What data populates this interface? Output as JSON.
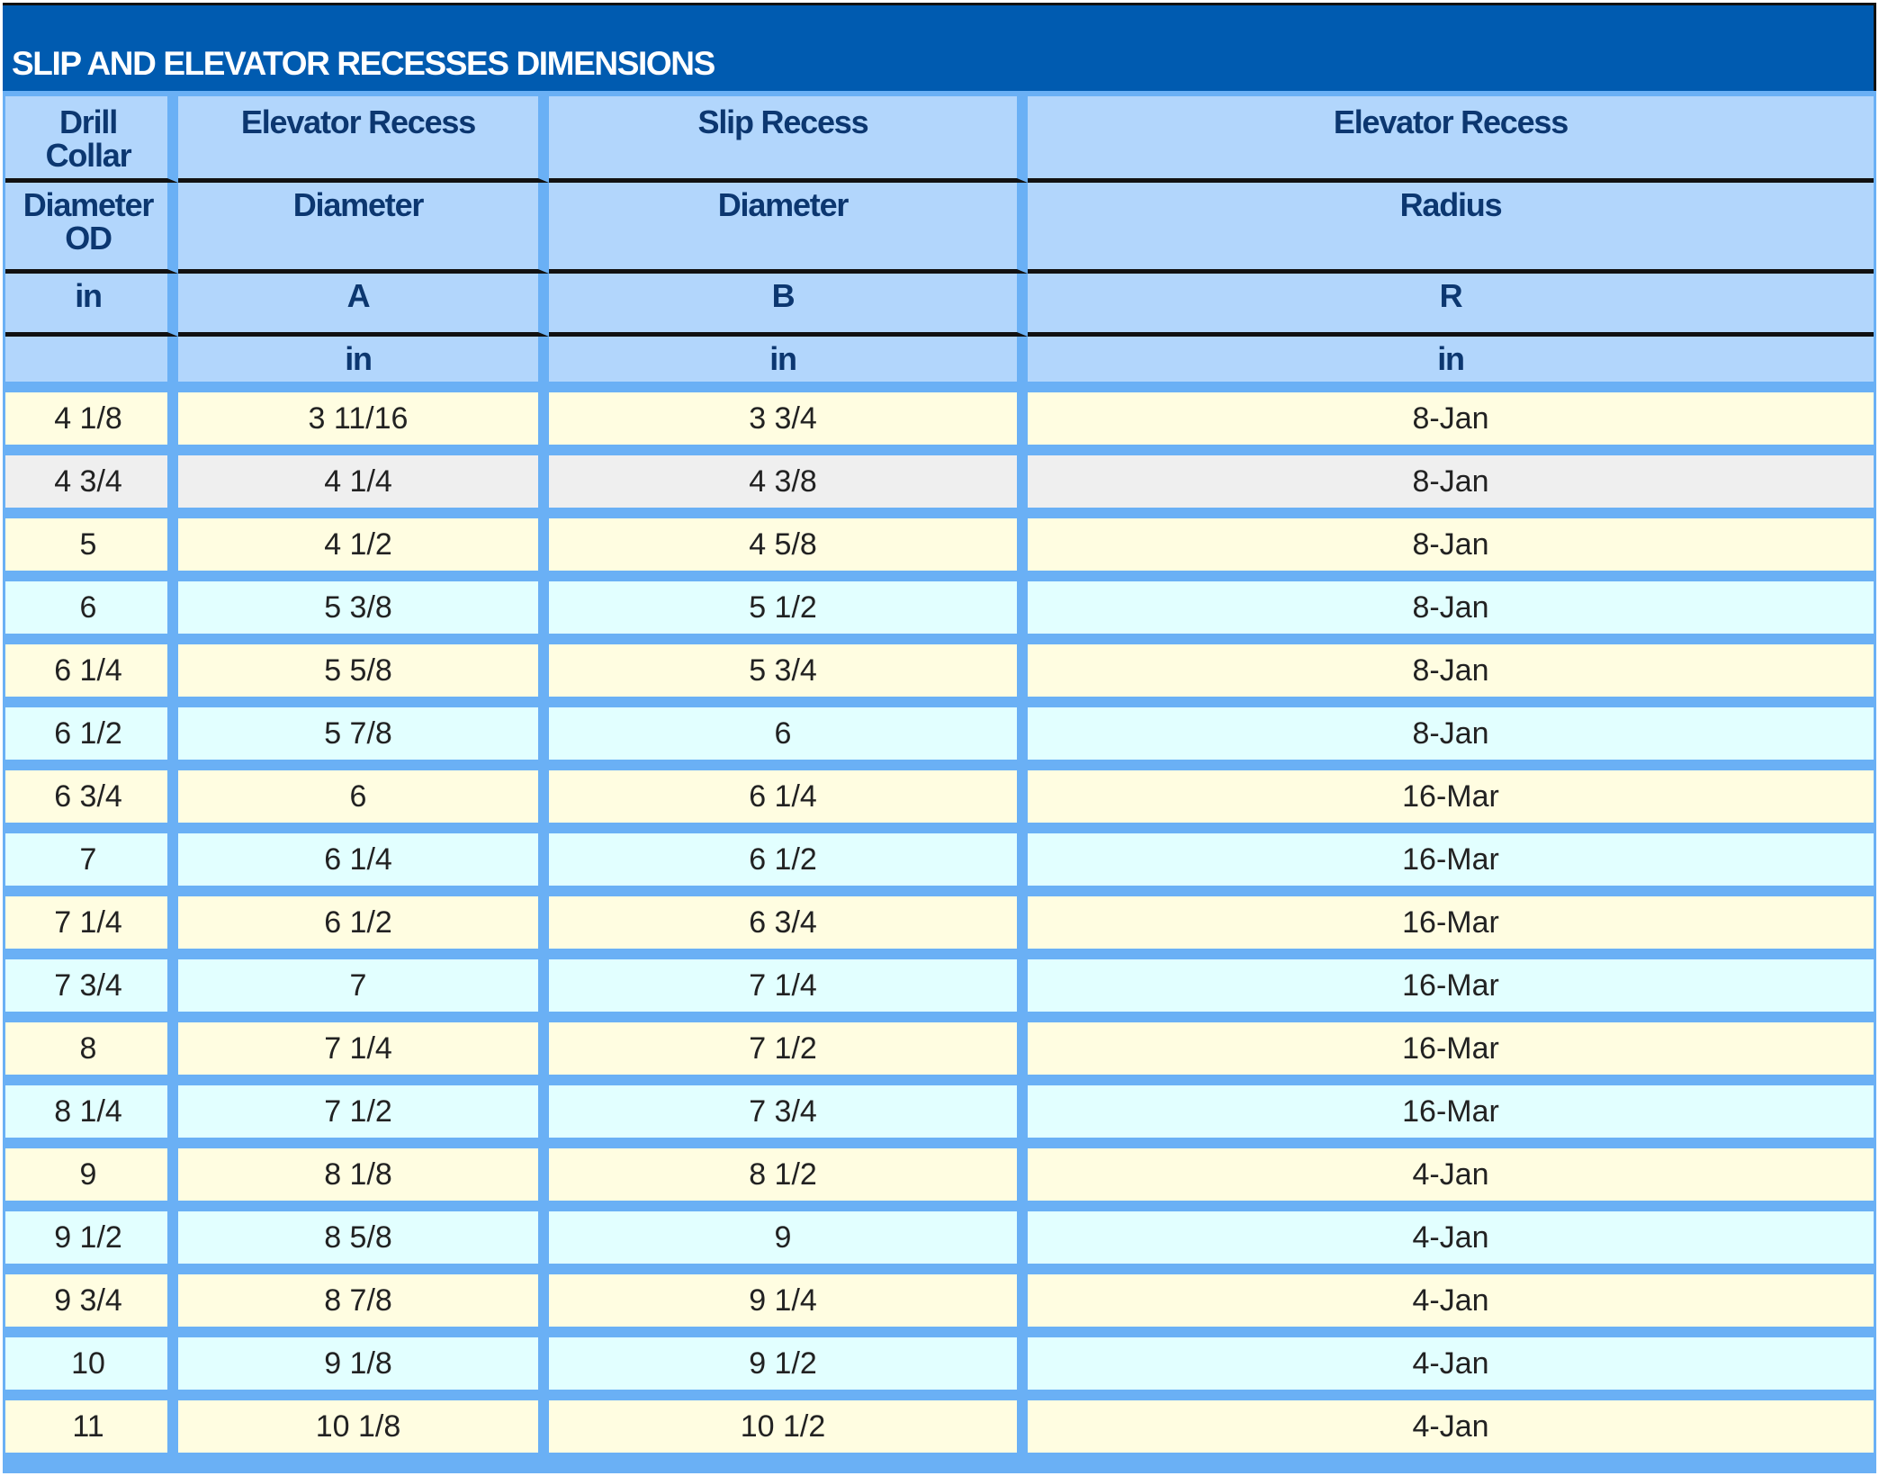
{
  "title": "SLIP AND ELEVATOR RECESSES DIMENSIONS",
  "colors": {
    "title_bg": "#005bb0",
    "title_text": "#ffffff",
    "grid_lines": "#6ab0f5",
    "header_bg": "#b2d6fc",
    "header_text": "#0c3770",
    "row_yellow": "#fffde1",
    "row_cyan": "#e2ffff",
    "row_gray": "#efefef"
  },
  "header": {
    "row1": [
      "Drill\nCollar",
      "Elevator Recess",
      "Slip Recess",
      "Elevator Recess"
    ],
    "row2": [
      "Diameter\nOD",
      "Diameter",
      "Diameter",
      "Radius"
    ],
    "row3": [
      "in",
      "A",
      "B",
      "R"
    ],
    "row4": [
      "",
      "in",
      "in",
      "in"
    ]
  },
  "rows": [
    {
      "style": "yellow",
      "cells": [
        "4 1/8",
        "3 11/16",
        "3 3/4",
        "8-Jan"
      ]
    },
    {
      "style": "gray",
      "cells": [
        "4 3/4",
        "4 1/4",
        "4 3/8",
        "8-Jan"
      ]
    },
    {
      "style": "yellow",
      "cells": [
        "5",
        "4 1/2",
        "4 5/8",
        "8-Jan"
      ]
    },
    {
      "style": "cyan",
      "cells": [
        "6",
        "5 3/8",
        "5 1/2",
        "8-Jan"
      ]
    },
    {
      "style": "yellow",
      "cells": [
        "6 1/4",
        "5 5/8",
        "5 3/4",
        "8-Jan"
      ]
    },
    {
      "style": "cyan",
      "cells": [
        "6 1/2",
        "5 7/8",
        "6",
        "8-Jan"
      ]
    },
    {
      "style": "yellow",
      "cells": [
        "6 3/4",
        "6",
        "6 1/4",
        "16-Mar"
      ]
    },
    {
      "style": "cyan",
      "cells": [
        "7",
        "6 1/4",
        "6 1/2",
        "16-Mar"
      ]
    },
    {
      "style": "yellow",
      "cells": [
        "7 1/4",
        "6 1/2",
        "6 3/4",
        "16-Mar"
      ]
    },
    {
      "style": "cyan",
      "cells": [
        "7 3/4",
        "7",
        "7 1/4",
        "16-Mar"
      ]
    },
    {
      "style": "yellow",
      "cells": [
        "8",
        "7 1/4",
        "7 1/2",
        "16-Mar"
      ]
    },
    {
      "style": "cyan",
      "cells": [
        "8 1/4",
        "7 1/2",
        "7 3/4",
        "16-Mar"
      ]
    },
    {
      "style": "yellow",
      "cells": [
        "9",
        "8 1/8",
        "8 1/2",
        "4-Jan"
      ]
    },
    {
      "style": "cyan",
      "cells": [
        "9 1/2",
        "8 5/8",
        "9",
        "4-Jan"
      ]
    },
    {
      "style": "yellow",
      "cells": [
        "9 3/4",
        "8 7/8",
        "9 1/4",
        "4-Jan"
      ]
    },
    {
      "style": "cyan",
      "cells": [
        "10",
        "9 1/8",
        "9 1/2",
        "4-Jan"
      ]
    },
    {
      "style": "yellow",
      "cells": [
        "11",
        "10 1/8",
        "10 1/2",
        "4-Jan"
      ]
    }
  ]
}
